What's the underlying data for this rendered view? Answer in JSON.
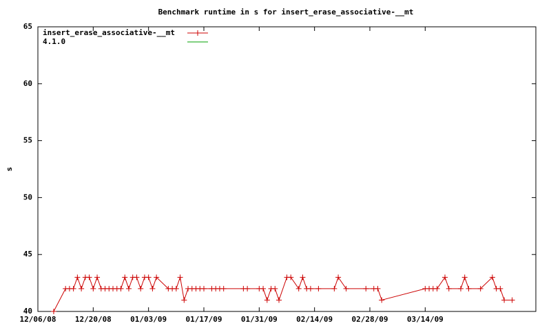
{
  "chart_data": {
    "type": "line",
    "title": "Benchmark runtime in s for insert_erase_associative-__mt",
    "y_label": "s",
    "x": [
      "2008-12-10",
      "2008-12-13",
      "2008-12-14",
      "2008-12-15",
      "2008-12-16",
      "2008-12-17",
      "2008-12-18",
      "2008-12-19",
      "2008-12-20",
      "2008-12-21",
      "2008-12-22",
      "2008-12-23",
      "2008-12-24",
      "2008-12-25",
      "2008-12-26",
      "2008-12-27",
      "2008-12-28",
      "2008-12-29",
      "2008-12-30",
      "2008-12-31",
      "2009-01-01",
      "2009-01-02",
      "2009-01-03",
      "2009-01-04",
      "2009-01-05",
      "2009-01-08",
      "2009-01-09",
      "2009-01-10",
      "2009-01-11",
      "2009-01-12",
      "2009-01-13",
      "2009-01-14",
      "2009-01-15",
      "2009-01-16",
      "2009-01-17",
      "2009-01-19",
      "2009-01-20",
      "2009-01-21",
      "2009-01-22",
      "2009-01-27",
      "2009-01-28",
      "2009-01-31",
      "2009-02-01",
      "2009-02-02",
      "2009-02-03",
      "2009-02-04",
      "2009-02-05",
      "2009-02-07",
      "2009-02-08",
      "2009-02-10",
      "2009-02-11",
      "2009-02-12",
      "2009-02-13",
      "2009-02-15",
      "2009-02-19",
      "2009-02-20",
      "2009-02-22",
      "2009-02-27",
      "2009-03-01",
      "2009-03-02",
      "2009-03-03",
      "2009-03-14",
      "2009-03-15",
      "2009-03-16",
      "2009-03-17",
      "2009-03-19",
      "2009-03-20",
      "2009-03-23",
      "2009-03-24",
      "2009-03-25",
      "2009-03-28",
      "2009-03-31",
      "2009-04-01",
      "2009-04-02",
      "2009-04-03",
      "2009-04-05"
    ],
    "series": [
      {
        "name": "insert_erase_associative-__mt",
        "color": "#cc0000",
        "values": [
          40,
          42,
          42,
          42,
          43,
          42,
          43,
          43,
          42,
          43,
          42,
          42,
          42,
          42,
          42,
          42,
          43,
          42,
          43,
          43,
          42,
          43,
          43,
          42,
          43,
          42,
          42,
          42,
          43,
          41,
          42,
          42,
          42,
          42,
          42,
          42,
          42,
          42,
          42,
          42,
          42,
          42,
          42,
          41,
          42,
          42,
          41,
          43,
          43,
          42,
          43,
          42,
          42,
          42,
          42,
          43,
          42,
          42,
          42,
          42,
          41,
          42,
          42,
          42,
          42,
          43,
          42,
          42,
          43,
          42,
          42,
          43,
          42,
          42,
          41,
          41
        ]
      },
      {
        "name": "4.1.0",
        "color": "#00a000",
        "values": [
          null,
          null,
          null,
          null,
          null,
          null,
          null,
          null,
          null,
          null,
          null,
          null,
          null,
          null,
          null,
          null,
          null,
          null,
          null,
          null,
          null,
          null,
          null,
          null,
          null,
          null,
          null,
          null,
          null,
          null,
          null,
          null,
          null,
          null,
          null,
          null,
          null,
          null,
          null,
          null,
          null,
          null,
          null,
          null,
          null,
          null,
          null,
          null,
          null,
          null,
          null,
          null,
          null,
          null,
          null,
          null,
          null,
          null,
          null,
          null,
          null,
          null,
          null,
          null,
          null,
          null,
          null,
          null,
          null,
          null,
          null,
          null,
          null,
          null,
          null,
          null
        ]
      }
    ],
    "xlim": [
      "2008-12-06",
      "2009-04-11"
    ],
    "xticks": [
      {
        "value": "2008-12-06",
        "label": "12/06/08"
      },
      {
        "value": "2008-12-20",
        "label": "12/20/08"
      },
      {
        "value": "2009-01-03",
        "label": "01/03/09"
      },
      {
        "value": "2009-01-17",
        "label": "01/17/09"
      },
      {
        "value": "2009-01-31",
        "label": "01/31/09"
      },
      {
        "value": "2009-02-14",
        "label": "02/14/09"
      },
      {
        "value": "2009-02-28",
        "label": "02/28/09"
      },
      {
        "value": "2009-03-14",
        "label": "03/14/09"
      }
    ],
    "ylim": [
      40,
      65
    ],
    "yticks": [
      40,
      45,
      50,
      55,
      60,
      65
    ],
    "legend": "top-left"
  }
}
